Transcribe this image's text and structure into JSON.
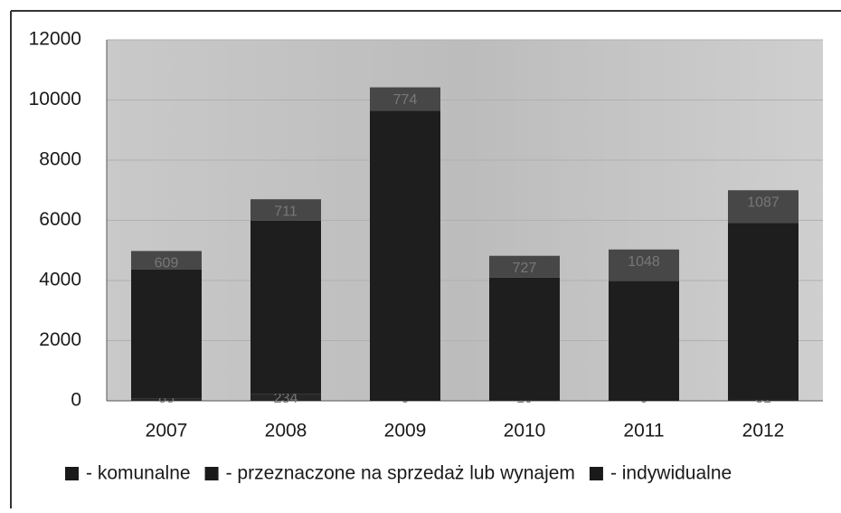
{
  "chart_data": {
    "type": "stacked_bar",
    "categories": [
      "2007",
      "2008",
      "2009",
      "2010",
      "2011",
      "2012"
    ],
    "series": [
      {
        "name": "- komunalne",
        "color": "#262626",
        "values": [
          85,
          234,
          0,
          10,
          0,
          31
        ]
      },
      {
        "name": "- przeznaczone na sprzedaż lub wynajem",
        "color": "#1e1e1e",
        "values": [
          4286,
          5755,
          9646,
          4083,
          3982,
          5882
        ]
      },
      {
        "name": "- indywidualne",
        "color": "#474747",
        "values": [
          609,
          711,
          774,
          727,
          1048,
          1087
        ]
      }
    ],
    "ylim": [
      0,
      12000
    ],
    "yticks": [
      0,
      2000,
      4000,
      6000,
      8000,
      10000,
      12000
    ],
    "grid": true
  }
}
